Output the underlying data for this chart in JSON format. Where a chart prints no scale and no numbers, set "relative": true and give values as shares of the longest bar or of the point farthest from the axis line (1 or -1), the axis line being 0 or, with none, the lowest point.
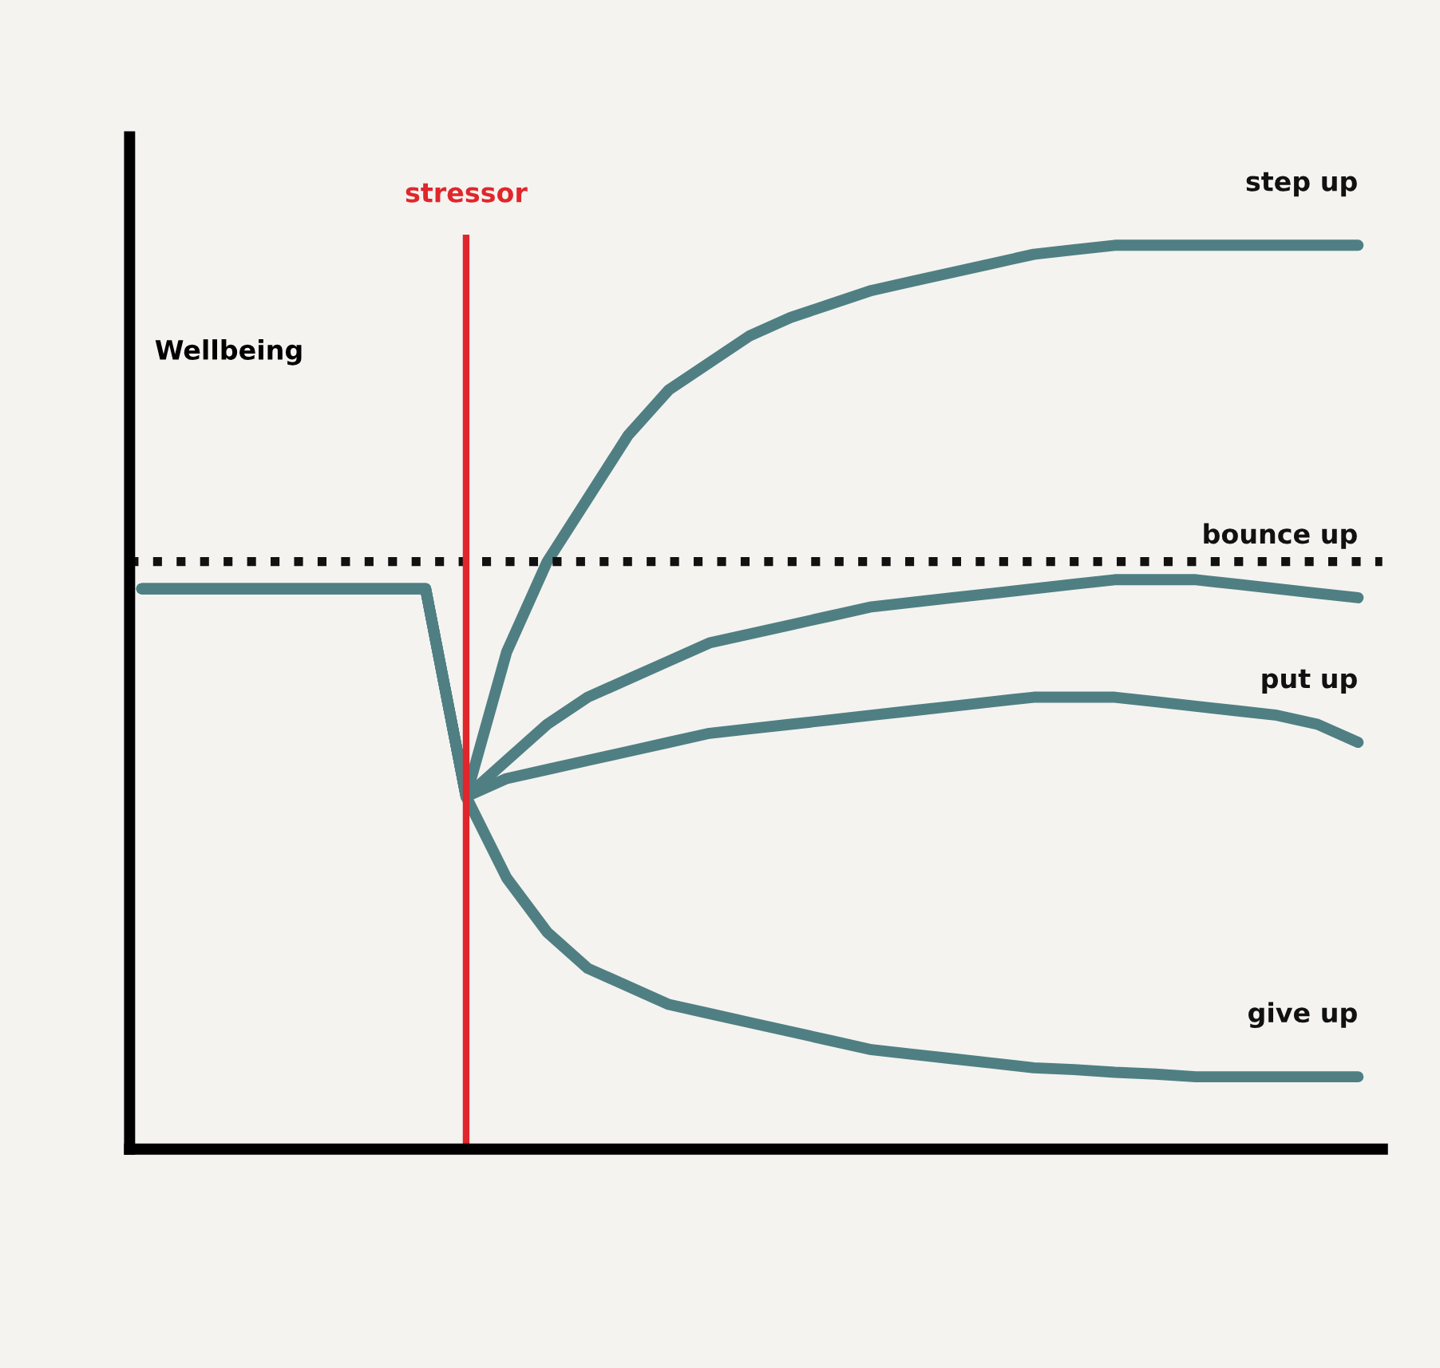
{
  "chart_data": {
    "type": "line",
    "relative": true,
    "ylabel": "Wellbeing",
    "annotations": [
      "stressor"
    ],
    "legend": false,
    "marker": "none",
    "line_style": "solid",
    "categories": [
      null,
      null,
      null,
      null,
      null,
      null,
      null,
      null,
      null,
      null,
      null,
      null,
      null,
      null,
      null,
      null,
      null,
      null,
      null,
      null,
      null,
      null,
      null,
      null,
      null,
      null,
      null,
      null,
      null,
      null,
      null
    ],
    "series": [
      {
        "name": "step up",
        "color": "#4f7f83",
        "values": [
          0.62,
          0.62,
          0.62,
          0.62,
          0.62,
          0.62,
          0.62,
          0.62,
          0.39,
          0.55,
          0.65,
          0.72,
          0.79,
          0.84,
          0.87,
          0.9,
          0.92,
          0.935,
          0.95,
          0.96,
          0.97,
          0.98,
          0.99,
          0.995,
          1,
          1,
          1,
          1,
          1,
          1,
          1
        ]
      },
      {
        "name": "bounce up",
        "color": "#4f7f83",
        "values": [
          0.62,
          0.62,
          0.62,
          0.62,
          0.62,
          0.62,
          0.62,
          0.62,
          0.39,
          0.43,
          0.47,
          0.5,
          0.52,
          0.54,
          0.56,
          0.57,
          0.58,
          0.59,
          0.6,
          0.605,
          0.61,
          0.615,
          0.62,
          0.625,
          0.63,
          0.63,
          0.63,
          0.625,
          0.62,
          0.615,
          0.61
        ]
      },
      {
        "name": "put up",
        "color": "#4f7f83",
        "values": [
          0.62,
          0.62,
          0.62,
          0.62,
          0.62,
          0.62,
          0.62,
          0.62,
          0.39,
          0.41,
          0.42,
          0.43,
          0.44,
          0.45,
          0.46,
          0.465,
          0.47,
          0.475,
          0.48,
          0.485,
          0.49,
          0.495,
          0.5,
          0.5,
          0.5,
          0.495,
          0.49,
          0.485,
          0.48,
          0.47,
          0.45
        ]
      },
      {
        "name": "give up",
        "color": "#4f7f83",
        "values": [
          0.62,
          0.62,
          0.62,
          0.62,
          0.62,
          0.62,
          0.62,
          0.62,
          0.39,
          0.3,
          0.24,
          0.2,
          0.18,
          0.16,
          0.15,
          0.14,
          0.13,
          0.12,
          0.11,
          0.105,
          0.1,
          0.095,
          0.09,
          0.088,
          0.085,
          0.083,
          0.08,
          0.08,
          0.08,
          0.08,
          0.08
        ]
      }
    ],
    "ref_lines": [
      {
        "axis": "y",
        "value": 0.65,
        "label": null,
        "color": "#111111",
        "line_style": "dotted"
      }
    ]
  }
}
